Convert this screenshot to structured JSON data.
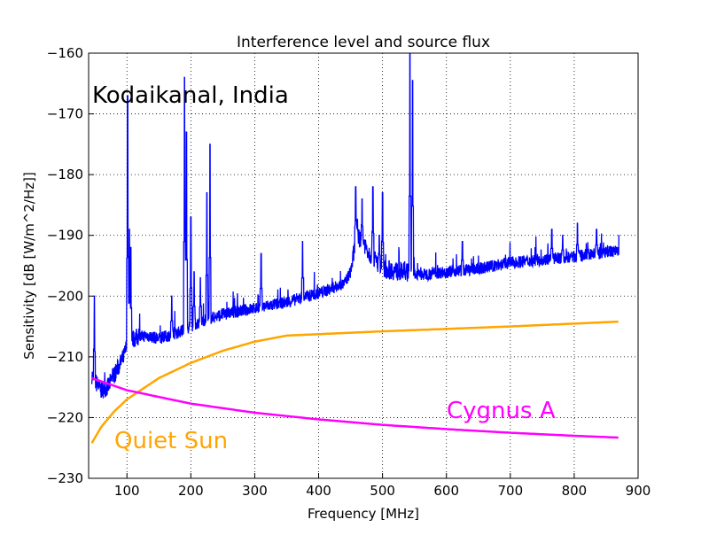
{
  "chart_data": {
    "type": "line",
    "title": "Interference level and source flux",
    "xlabel": "Frequency [MHz]",
    "ylabel": "Sensitivity [dB [W/m^2/Hz]]",
    "xlim": [
      40,
      900
    ],
    "ylim": [
      -230,
      -160
    ],
    "xticks": [
      100,
      200,
      300,
      400,
      500,
      600,
      700,
      800,
      900
    ],
    "yticks": [
      -230,
      -220,
      -210,
      -200,
      -190,
      -180,
      -170,
      -160
    ],
    "grid": true,
    "annotations": [
      {
        "text": "Kodaikanal, India",
        "x": 45,
        "y": -167,
        "color": "#000000"
      },
      {
        "text": "Cygnus A",
        "x": 600,
        "y": -220,
        "color": "#ff00ff"
      },
      {
        "text": "Quiet Sun",
        "x": 80,
        "y": -224.5,
        "color": "#ffa500"
      }
    ],
    "series": [
      {
        "name": "Interference level",
        "color": "#0000ff",
        "baseline": [
          [
            45,
            -213
          ],
          [
            50,
            -214
          ],
          [
            60,
            -215.5
          ],
          [
            70,
            -215
          ],
          [
            80,
            -213
          ],
          [
            90,
            -211
          ],
          [
            95,
            -210
          ],
          [
            100,
            -208
          ],
          [
            110,
            -207
          ],
          [
            130,
            -206.5
          ],
          [
            150,
            -207
          ],
          [
            180,
            -206
          ],
          [
            200,
            -205
          ],
          [
            220,
            -204
          ],
          [
            250,
            -203
          ],
          [
            300,
            -202
          ],
          [
            350,
            -201
          ],
          [
            400,
            -199.5
          ],
          [
            440,
            -198
          ],
          [
            450,
            -196
          ],
          [
            460,
            -190
          ],
          [
            470,
            -191
          ],
          [
            480,
            -193
          ],
          [
            500,
            -195.5
          ],
          [
            530,
            -196
          ],
          [
            560,
            -196.5
          ],
          [
            600,
            -196
          ],
          [
            650,
            -195.5
          ],
          [
            700,
            -194.5
          ],
          [
            750,
            -194
          ],
          [
            800,
            -193.5
          ],
          [
            870,
            -192.5
          ]
        ],
        "spikes": [
          [
            49,
            -200
          ],
          [
            101,
            -167
          ],
          [
            104,
            -189
          ],
          [
            106,
            -192
          ],
          [
            170,
            -200
          ],
          [
            190,
            -164
          ],
          [
            193,
            -173
          ],
          [
            200,
            -187
          ],
          [
            205,
            -196
          ],
          [
            215,
            -197
          ],
          [
            225,
            -183
          ],
          [
            230,
            -175
          ],
          [
            310,
            -193
          ],
          [
            375,
            -191
          ],
          [
            458,
            -182
          ],
          [
            468,
            -184
          ],
          [
            485,
            -182
          ],
          [
            495,
            -190
          ],
          [
            500,
            -183
          ],
          [
            543,
            -160
          ],
          [
            547,
            -164.5
          ],
          [
            625,
            -191
          ],
          [
            765,
            -189
          ],
          [
            782,
            -190
          ],
          [
            805,
            -188
          ],
          [
            835,
            -189
          ]
        ]
      },
      {
        "name": "Quiet Sun",
        "color": "#ffa500",
        "points": [
          [
            45,
            -224.2
          ],
          [
            60,
            -221.5
          ],
          [
            80,
            -219
          ],
          [
            100,
            -217
          ],
          [
            150,
            -213.5
          ],
          [
            200,
            -211
          ],
          [
            250,
            -209
          ],
          [
            300,
            -207.5
          ],
          [
            350,
            -206.5
          ],
          [
            500,
            -205.8
          ],
          [
            700,
            -205
          ],
          [
            870,
            -204.2
          ]
        ]
      },
      {
        "name": "Cygnus A",
        "color": "#ff00ff",
        "points": [
          [
            45,
            -213.5
          ],
          [
            100,
            -215.5
          ],
          [
            200,
            -217.7
          ],
          [
            300,
            -219.2
          ],
          [
            400,
            -220.3
          ],
          [
            500,
            -221.2
          ],
          [
            600,
            -221.9
          ],
          [
            700,
            -222.5
          ],
          [
            800,
            -223
          ],
          [
            870,
            -223.3
          ]
        ]
      }
    ]
  }
}
